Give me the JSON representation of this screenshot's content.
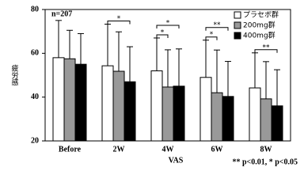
{
  "chart_data": {
    "type": "bar",
    "ylabel": "疲労感",
    "xlabel": "VAS",
    "annotation": "n=207",
    "footnote": "** p<0.01, * p<0.05",
    "categories": [
      "Before",
      "2W",
      "4W",
      "6W",
      "8W"
    ],
    "series": [
      {
        "name": "プラセボ群",
        "color": "#ffffff",
        "values": [
          58,
          54.3,
          52,
          49,
          44.2
        ],
        "errors": [
          17,
          19,
          15,
          17,
          16
        ]
      },
      {
        "name": "200mg群",
        "color": "#999999",
        "values": [
          57.5,
          51.8,
          44.6,
          42,
          39.2
        ],
        "errors": [
          13,
          18,
          17,
          19.5,
          17
        ]
      },
      {
        "name": "400mg群",
        "color": "#000000",
        "values": [
          55,
          47,
          45,
          40.3,
          36
        ],
        "errors": [
          14,
          16,
          17,
          16,
          16.5
        ]
      }
    ],
    "significance": [
      {
        "category": "2W",
        "between": [
          "プラセボ群",
          "400mg群"
        ],
        "label": "*"
      },
      {
        "category": "4W",
        "between": [
          "プラセボ群",
          "200mg群"
        ],
        "label": "*"
      },
      {
        "category": "4W",
        "between": [
          "プラセボ群",
          "400mg群"
        ],
        "label": "*"
      },
      {
        "category": "6W",
        "between": [
          "プラセボ群",
          "200mg群"
        ],
        "label": "*"
      },
      {
        "category": "6W",
        "between": [
          "プラセボ群",
          "400mg群"
        ],
        "label": "**"
      },
      {
        "category": "8W",
        "between": [
          "プラセボ群",
          "400mg群"
        ],
        "label": "**"
      }
    ],
    "ylim": [
      20,
      80
    ],
    "yticks": [
      20,
      40,
      60,
      80
    ],
    "legend": "upper right"
  }
}
